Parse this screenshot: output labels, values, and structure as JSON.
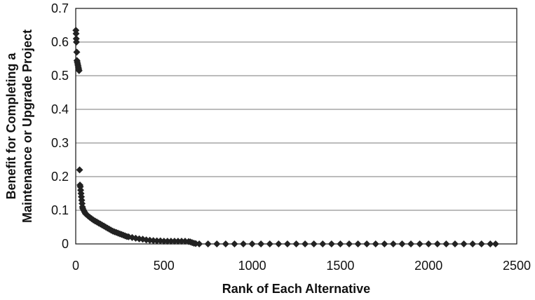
{
  "chart_data": {
    "type": "scatter",
    "xlabel": "Rank of Each Alternative",
    "ylabel_lines": [
      "Benefit for Completing a",
      "Maintenance or Upgrade Project"
    ],
    "xlim": [
      0,
      2500
    ],
    "ylim": [
      0,
      0.7
    ],
    "x_ticks": [
      0,
      500,
      1000,
      1500,
      2000,
      2500
    ],
    "y_ticks": [
      0,
      0.1,
      0.2,
      0.3,
      0.4,
      0.5,
      0.6,
      0.7
    ],
    "x_tick_labels": [
      "0",
      "500",
      "1000",
      "1500",
      "2000",
      "2500"
    ],
    "y_tick_labels": [
      "0",
      "0.1",
      "0.2",
      "0.3",
      "0.4",
      "0.5",
      "0.6",
      "0.7"
    ],
    "horizontal_grid": true,
    "vertical_grid": false,
    "legend": "none",
    "marker": "diamond",
    "marker_color": "#222222",
    "series": [
      {
        "points": [
          {
            "x": 1,
            "y": 0.635
          },
          {
            "x": 2,
            "y": 0.625
          },
          {
            "x": 3,
            "y": 0.61
          },
          {
            "x": 4,
            "y": 0.6
          },
          {
            "x": 6,
            "y": 0.57
          },
          {
            "x": 7,
            "y": 0.545
          },
          {
            "x": 9,
            "y": 0.54
          },
          {
            "x": 11,
            "y": 0.535
          },
          {
            "x": 13,
            "y": 0.53
          },
          {
            "x": 15,
            "y": 0.525
          },
          {
            "x": 17,
            "y": 0.52
          },
          {
            "x": 19,
            "y": 0.515
          },
          {
            "x": 22,
            "y": 0.22
          },
          {
            "x": 24,
            "y": 0.175
          },
          {
            "x": 26,
            "y": 0.17
          },
          {
            "x": 28,
            "y": 0.16
          },
          {
            "x": 30,
            "y": 0.15
          },
          {
            "x": 32,
            "y": 0.14
          },
          {
            "x": 34,
            "y": 0.13
          },
          {
            "x": 36,
            "y": 0.12
          },
          {
            "x": 38,
            "y": 0.11
          },
          {
            "x": 40,
            "y": 0.105
          },
          {
            "x": 45,
            "y": 0.1
          },
          {
            "x": 50,
            "y": 0.095
          },
          {
            "x": 55,
            "y": 0.09
          },
          {
            "x": 60,
            "y": 0.088
          },
          {
            "x": 70,
            "y": 0.083
          },
          {
            "x": 80,
            "y": 0.079
          },
          {
            "x": 90,
            "y": 0.075
          },
          {
            "x": 100,
            "y": 0.071
          },
          {
            "x": 110,
            "y": 0.068
          },
          {
            "x": 120,
            "y": 0.065
          },
          {
            "x": 130,
            "y": 0.062
          },
          {
            "x": 140,
            "y": 0.059
          },
          {
            "x": 150,
            "y": 0.056
          },
          {
            "x": 160,
            "y": 0.053
          },
          {
            "x": 170,
            "y": 0.05
          },
          {
            "x": 180,
            "y": 0.047
          },
          {
            "x": 190,
            "y": 0.044
          },
          {
            "x": 200,
            "y": 0.041
          },
          {
            "x": 210,
            "y": 0.038
          },
          {
            "x": 220,
            "y": 0.036
          },
          {
            "x": 230,
            "y": 0.034
          },
          {
            "x": 240,
            "y": 0.032
          },
          {
            "x": 250,
            "y": 0.03
          },
          {
            "x": 260,
            "y": 0.028
          },
          {
            "x": 270,
            "y": 0.026
          },
          {
            "x": 280,
            "y": 0.024
          },
          {
            "x": 290,
            "y": 0.022
          },
          {
            "x": 300,
            "y": 0.021
          },
          {
            "x": 320,
            "y": 0.019
          },
          {
            "x": 340,
            "y": 0.017
          },
          {
            "x": 360,
            "y": 0.015
          },
          {
            "x": 380,
            "y": 0.014
          },
          {
            "x": 400,
            "y": 0.012
          },
          {
            "x": 420,
            "y": 0.011
          },
          {
            "x": 440,
            "y": 0.01
          },
          {
            "x": 460,
            "y": 0.009
          },
          {
            "x": 480,
            "y": 0.009
          },
          {
            "x": 500,
            "y": 0.008
          },
          {
            "x": 520,
            "y": 0.008
          },
          {
            "x": 540,
            "y": 0.008
          },
          {
            "x": 560,
            "y": 0.008
          },
          {
            "x": 580,
            "y": 0.008
          },
          {
            "x": 600,
            "y": 0.008
          },
          {
            "x": 620,
            "y": 0.008
          },
          {
            "x": 640,
            "y": 0.007
          },
          {
            "x": 650,
            "y": 0.006
          },
          {
            "x": 660,
            "y": 0.004
          },
          {
            "x": 670,
            "y": 0.002
          },
          {
            "x": 680,
            "y": 0.001
          },
          {
            "x": 700,
            "y": 0.0
          },
          {
            "x": 750,
            "y": 0.0
          },
          {
            "x": 800,
            "y": 0.0
          },
          {
            "x": 850,
            "y": 0.0
          },
          {
            "x": 900,
            "y": 0.0
          },
          {
            "x": 950,
            "y": 0.0
          },
          {
            "x": 1000,
            "y": 0.0
          },
          {
            "x": 1050,
            "y": 0.0
          },
          {
            "x": 1100,
            "y": 0.0
          },
          {
            "x": 1150,
            "y": 0.0
          },
          {
            "x": 1200,
            "y": 0.0
          },
          {
            "x": 1250,
            "y": 0.0
          },
          {
            "x": 1300,
            "y": 0.0
          },
          {
            "x": 1350,
            "y": 0.0
          },
          {
            "x": 1400,
            "y": 0.0
          },
          {
            "x": 1450,
            "y": 0.0
          },
          {
            "x": 1500,
            "y": 0.0
          },
          {
            "x": 1550,
            "y": 0.0
          },
          {
            "x": 1600,
            "y": 0.0
          },
          {
            "x": 1650,
            "y": 0.0
          },
          {
            "x": 1700,
            "y": 0.0
          },
          {
            "x": 1750,
            "y": 0.0
          },
          {
            "x": 1800,
            "y": 0.0
          },
          {
            "x": 1850,
            "y": 0.0
          },
          {
            "x": 1900,
            "y": 0.0
          },
          {
            "x": 1950,
            "y": 0.0
          },
          {
            "x": 2000,
            "y": 0.0
          },
          {
            "x": 2050,
            "y": 0.0
          },
          {
            "x": 2100,
            "y": 0.0
          },
          {
            "x": 2150,
            "y": 0.0
          },
          {
            "x": 2200,
            "y": 0.0
          },
          {
            "x": 2250,
            "y": 0.0
          },
          {
            "x": 2300,
            "y": 0.0
          },
          {
            "x": 2350,
            "y": 0.0
          },
          {
            "x": 2380,
            "y": 0.0
          }
        ]
      }
    ]
  }
}
